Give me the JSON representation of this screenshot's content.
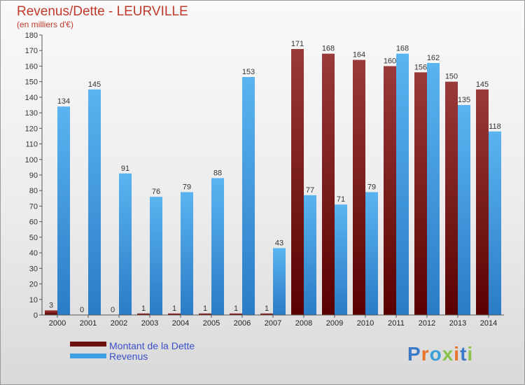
{
  "chart_data": {
    "type": "bar",
    "title": "Revenus/Dette - LEURVILLE",
    "subtitle": "(en milliers d'€)",
    "categories": [
      "2000",
      "2001",
      "2002",
      "2003",
      "2004",
      "2005",
      "2006",
      "2007",
      "2008",
      "2009",
      "2010",
      "2011",
      "2012",
      "2013",
      "2014"
    ],
    "series": [
      {
        "name": "Montant de la Dette",
        "color": "#6e1010",
        "values": [
          3,
          0,
          0,
          1,
          1,
          1,
          1,
          1,
          171,
          168,
          164,
          160,
          156,
          150,
          145
        ]
      },
      {
        "name": "Revenus",
        "color": "#3e9ee3",
        "values": [
          134,
          145,
          91,
          76,
          79,
          88,
          153,
          43,
          77,
          71,
          79,
          168,
          162,
          135,
          118
        ]
      }
    ],
    "ylim": [
      0,
      180
    ],
    "yticks": [
      0,
      10,
      20,
      30,
      40,
      50,
      60,
      70,
      80,
      90,
      100,
      110,
      120,
      130,
      140,
      150,
      160,
      170,
      180
    ],
    "grid": false,
    "legend_position": "bottom-left"
  },
  "brand": {
    "letters": [
      {
        "ch": "P",
        "color": "#3a78c8"
      },
      {
        "ch": "r",
        "color": "#e8732a"
      },
      {
        "ch": "o",
        "color": "#3aa0d8"
      },
      {
        "ch": "x",
        "color": "#8bc34a"
      },
      {
        "ch": "i",
        "color": "#e8732a"
      },
      {
        "ch": "t",
        "color": "#3a78c8"
      },
      {
        "ch": "i",
        "color": "#8bc34a"
      }
    ]
  }
}
